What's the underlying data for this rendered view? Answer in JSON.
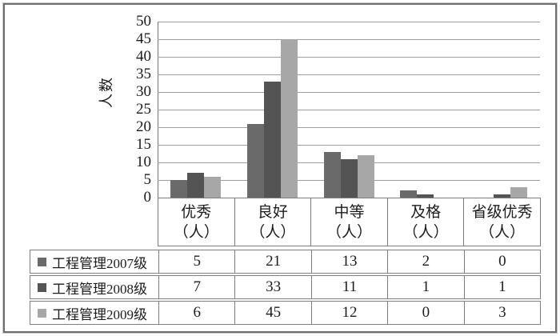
{
  "chart_data": {
    "type": "bar",
    "title": "",
    "ylabel": "人数",
    "xlabel": "",
    "categories": [
      "优秀",
      "良好",
      "中等",
      "及格",
      "省级优秀"
    ],
    "category_unit": "（人）",
    "ylim": [
      0,
      50
    ],
    "ytick_step": 5,
    "yticks": [
      0,
      5,
      10,
      15,
      20,
      25,
      30,
      35,
      40,
      45,
      50
    ],
    "grid": true,
    "legend_position": "table-left-column",
    "series": [
      {
        "name": "工程管理2007级",
        "color": "#6a6a6a",
        "values": [
          5,
          21,
          13,
          2,
          0
        ]
      },
      {
        "name": "工程管理2008级",
        "color": "#545454",
        "values": [
          7,
          33,
          11,
          1,
          1
        ]
      },
      {
        "name": "工程管理2009级",
        "color": "#a7a7a7",
        "values": [
          6,
          45,
          12,
          0,
          3
        ]
      }
    ],
    "colors": {
      "gridline": "#9e9e9e",
      "axis": "#767676",
      "table_border": "#7e7e7e",
      "outer_frame": "#6e6e6e",
      "background": "#ffffff"
    }
  }
}
